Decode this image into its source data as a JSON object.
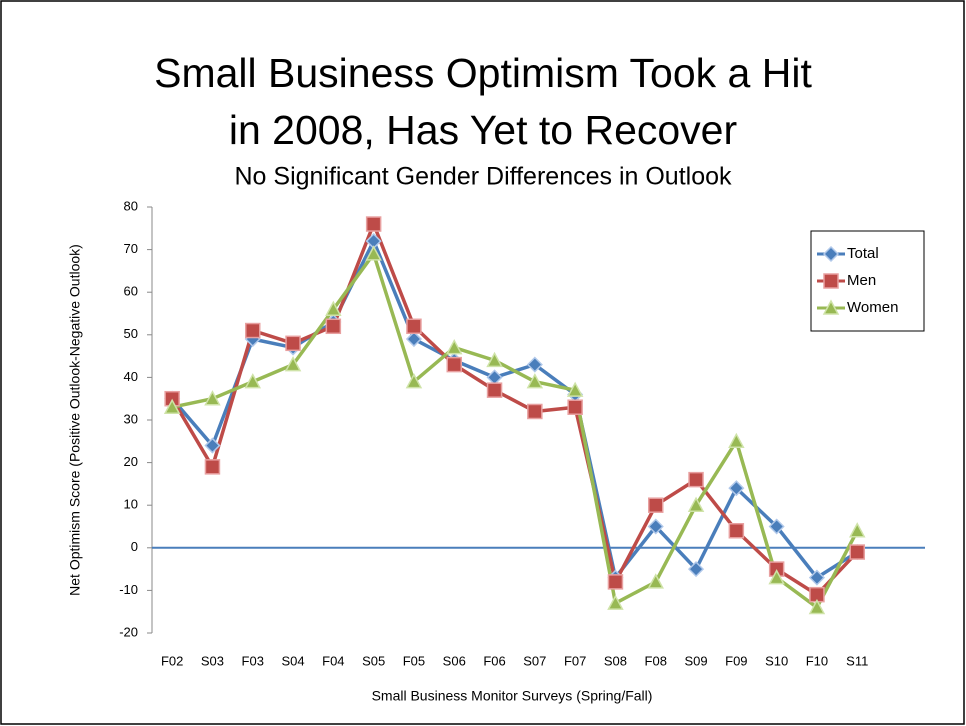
{
  "chart_data": {
    "type": "line",
    "title": [
      "Small Business Optimism Took a Hit",
      "in 2008, Has Yet to Recover"
    ],
    "subtitle": "No Significant Gender Differences in Outlook",
    "y_label": "Net Optimism Score (Positive Outlook-Negative Outlook)",
    "x_label": "Small Business Monitor Surveys (Spring/Fall)",
    "categories": [
      "F02",
      "S03",
      "F03",
      "S04",
      "F04",
      "S05",
      "F05",
      "S06",
      "F06",
      "S07",
      "F07",
      "S08",
      "F08",
      "S09",
      "F09",
      "S10",
      "F10",
      "S11"
    ],
    "series": [
      {
        "name": "Total",
        "color": "#4a7ebb",
        "marker": "diamond",
        "values": [
          35,
          24,
          49,
          47,
          53,
          72,
          49,
          44,
          40,
          43,
          36,
          -7,
          5,
          -5,
          14,
          5,
          -7,
          -1
        ]
      },
      {
        "name": "Men",
        "color": "#be4b48",
        "marker": "square",
        "values": [
          35,
          19,
          51,
          48,
          52,
          76,
          52,
          43,
          37,
          32,
          33,
          -8,
          10,
          16,
          4,
          -5,
          -11,
          -1
        ]
      },
      {
        "name": "Women",
        "color": "#98b954",
        "marker": "triangle",
        "values": [
          33,
          35,
          39,
          43,
          56,
          69,
          39,
          47,
          44,
          39,
          37,
          -13,
          -8,
          10,
          25,
          -7,
          -14,
          4
        ]
      }
    ],
    "ylim": [
      -20,
      80
    ],
    "yticks": [
      -20,
      -10,
      0,
      10,
      20,
      30,
      40,
      50,
      60,
      70,
      80
    ],
    "legend": "upper right"
  }
}
